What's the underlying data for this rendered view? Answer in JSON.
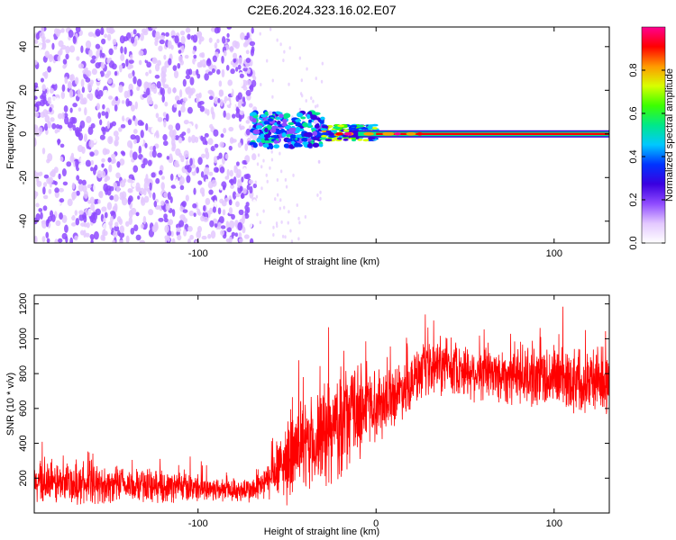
{
  "title": "C2E6.2024.323.16.02.E07",
  "chart_data": [
    {
      "type": "heatmap",
      "xlabel": "Height of straight line (km)",
      "ylabel": "Frequency (Hz)",
      "xlim": [
        -192,
        131
      ],
      "ylim": [
        -50,
        49
      ],
      "xticks": [
        -100,
        0,
        100
      ],
      "xtick_labels": [
        "-100",
        "",
        "100"
      ],
      "yticks": [
        -40,
        -20,
        0,
        20,
        40
      ],
      "ytick_labels": [
        "-40",
        "-20",
        "0",
        "20",
        "40"
      ],
      "colorbar": {
        "label": "Normalized spectral amplitude",
        "range": [
          0,
          1
        ],
        "ticks": [
          0,
          0.2,
          0.4,
          0.6,
          0.8
        ],
        "tick_labels": [
          "0.0",
          "0.2",
          "0.4",
          "0.6",
          "0.8"
        ],
        "colormap": [
          "#ffffff",
          "#e3c8ff",
          "#8f4bff",
          "#3a00e0",
          "#0033ff",
          "#00c8ff",
          "#00e88a",
          "#3cff00",
          "#d8ff00",
          "#ff9900",
          "#ff0000",
          "#ff0090"
        ]
      },
      "regions": [
        {
          "x": [
            -192,
            -68
          ],
          "y": [
            -50,
            49
          ],
          "amplitude": 0.15,
          "description_level": "noise"
        },
        {
          "x": [
            -70,
            -30
          ],
          "y": [
            -6,
            10
          ],
          "amplitude": 0.45
        },
        {
          "x": [
            -30,
            0
          ],
          "y": [
            -3,
            4
          ],
          "amplitude": 0.6
        },
        {
          "x": [
            0,
            131
          ],
          "y": [
            -1,
            1
          ],
          "amplitude": 0.9
        }
      ]
    },
    {
      "type": "line",
      "xlabel": "Height of straight line (km)",
      "ylabel": "SNR (10 * v/v)",
      "xlim": [
        -192,
        131
      ],
      "ylim": [
        0,
        1250
      ],
      "xticks": [
        -100,
        0,
        100
      ],
      "xtick_labels": [
        "-100",
        "0",
        "100"
      ],
      "yticks": [
        200,
        400,
        600,
        800,
        1000,
        1200
      ],
      "ytick_labels": [
        "200",
        "400",
        "600",
        "800",
        "1000",
        "1200"
      ],
      "series_color": "#ff0000",
      "envelope": {
        "x": [
          -192,
          -150,
          -110,
          -80,
          -68,
          -60,
          -50,
          -40,
          -30,
          -20,
          -10,
          0,
          10,
          20,
          30,
          40,
          60,
          80,
          100,
          120,
          131
        ],
        "mean": [
          170,
          160,
          150,
          130,
          130,
          190,
          300,
          380,
          420,
          520,
          600,
          620,
          680,
          760,
          820,
          840,
          800,
          790,
          780,
          760,
          760
        ],
        "spread": [
          130,
          110,
          90,
          70,
          80,
          120,
          240,
          260,
          300,
          320,
          300,
          220,
          180,
          170,
          170,
          160,
          170,
          180,
          200,
          200,
          200
        ]
      }
    }
  ]
}
